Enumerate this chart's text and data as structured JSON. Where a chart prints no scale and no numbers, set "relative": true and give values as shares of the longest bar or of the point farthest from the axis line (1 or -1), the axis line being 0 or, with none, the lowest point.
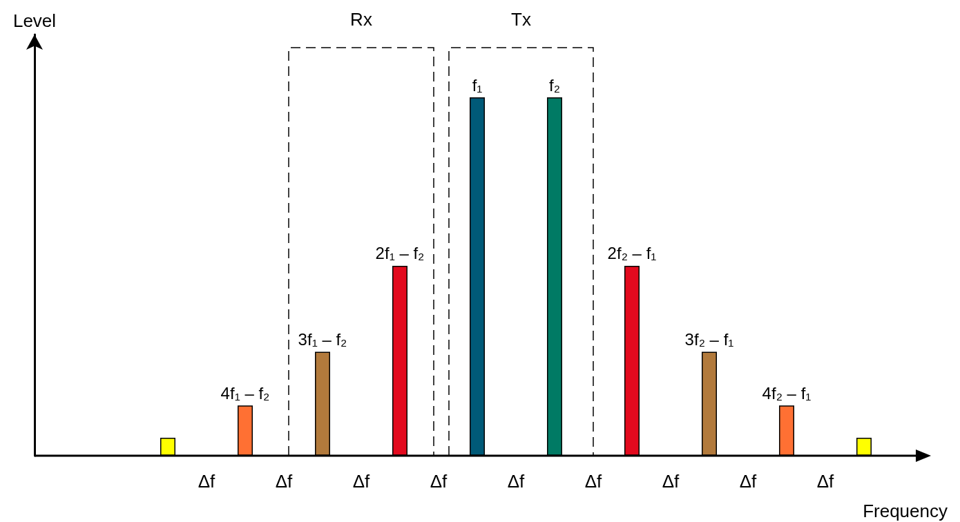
{
  "chart_data": {
    "type": "bar",
    "relative": true,
    "xlabel": "Frequency",
    "categories": [
      null,
      "4f₁ – f₂",
      "3f₁ – f₂",
      "2f₁ – f₂",
      "f₁",
      "f₂",
      "2f₂ – f₁",
      "3f₂ – f₁",
      "4f₂ – f₁",
      null
    ],
    "values": [
      0.05,
      0.14,
      0.29,
      0.53,
      1,
      1,
      0.53,
      0.29,
      0.14,
      0.05
    ],
    "colors": [
      "#ffff00",
      "#ff7033",
      "#b27a3c",
      "#e30a1e",
      "#005a78",
      "#007a64",
      "#e30a1e",
      "#b27a3c",
      "#ff7033",
      "#ffff00"
    ],
    "annotations": [
      "Level",
      "Rx",
      "Tx",
      "Δf",
      "Δf",
      "Δf",
      "Δf",
      "Δf",
      "Δf",
      "Δf",
      "Δf",
      "Δf"
    ]
  }
}
